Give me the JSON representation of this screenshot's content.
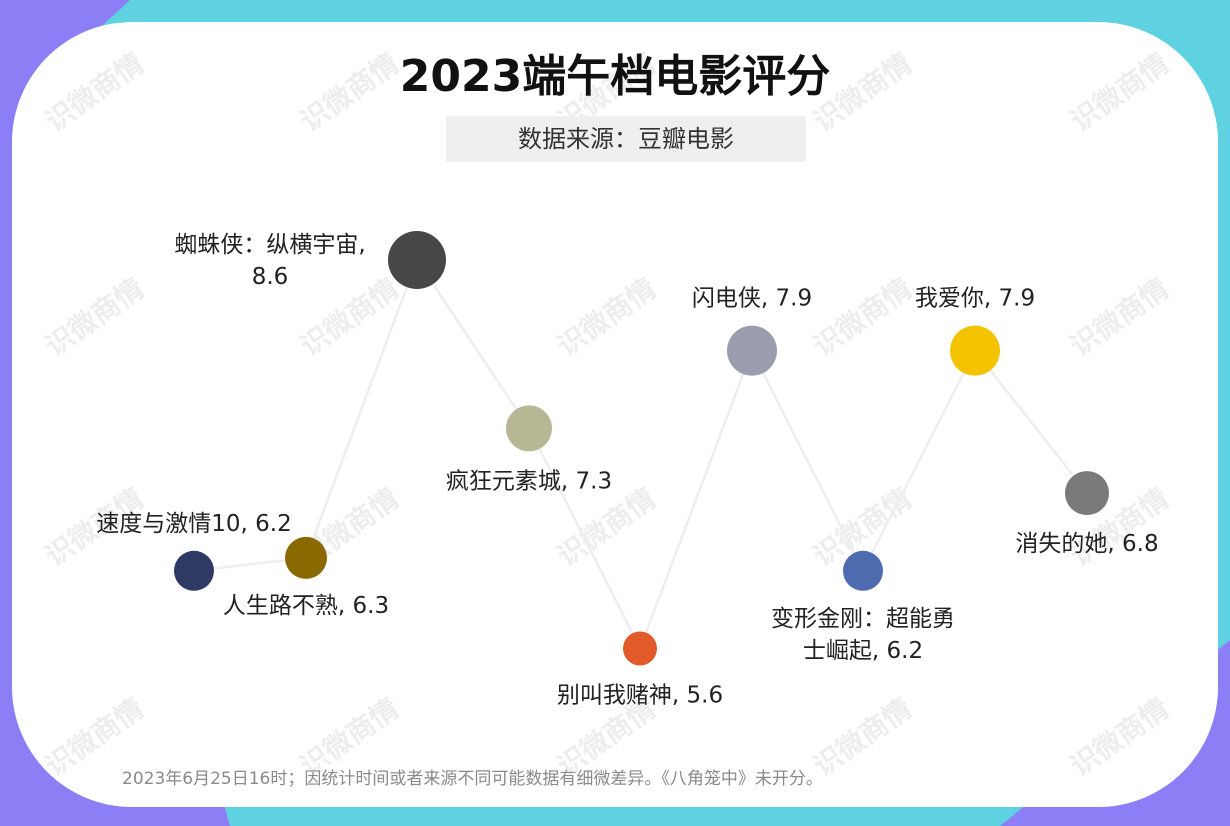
{
  "title": "2023端午档电影评分",
  "subtitle": "数据来源：豆瓣电影",
  "footnote": "2023年6月25日16时；因统计时间或者来源不同可能数据有细微差异。《八角笼中》未开分。",
  "watermark": "识微商情",
  "colors": {
    "background_top": "#5fd2e2",
    "background_corner": "#8c7ff6",
    "card": "#ffffff",
    "connector": "#eeeeee",
    "label": "#222222"
  },
  "chart_data": {
    "type": "scatter",
    "y_unit": "豆瓣评分",
    "connected": true,
    "points": [
      {
        "name": "速度与激情10",
        "value": 6.2,
        "label_lines": [
          "速度与激情10, 6.2"
        ],
        "color": "#2e3a63"
      },
      {
        "name": "人生路不熟",
        "value": 6.3,
        "label_lines": [
          "人生路不熟, 6.3"
        ],
        "color": "#8a6a00"
      },
      {
        "name": "蜘蛛侠：纵横宇宙",
        "value": 8.6,
        "label_lines": [
          "蜘蛛侠：纵横宇宙,",
          "8.6"
        ],
        "color": "#474747"
      },
      {
        "name": "疯狂元素城",
        "value": 7.3,
        "label_lines": [
          "疯狂元素城, 7.3"
        ],
        "color": "#b7b796"
      },
      {
        "name": "别叫我赌神",
        "value": 5.6,
        "label_lines": [
          "别叫我赌神, 5.6"
        ],
        "color": "#e2592a"
      },
      {
        "name": "闪电侠",
        "value": 7.9,
        "label_lines": [
          "闪电侠, 7.9"
        ],
        "color": "#9b9cae"
      },
      {
        "name": "变形金刚：超能勇士崛起",
        "value": 6.2,
        "label_lines": [
          "变形金刚：超能勇",
          "士崛起, 6.2"
        ],
        "color": "#4f6bb0"
      },
      {
        "name": "我爱你",
        "value": 7.9,
        "label_lines": [
          "我爱你, 7.9"
        ],
        "color": "#f4c300"
      },
      {
        "name": "消失的她",
        "value": 6.8,
        "label_lines": [
          "消失的她, 6.8"
        ],
        "color": "#7a7a7a"
      }
    ]
  }
}
